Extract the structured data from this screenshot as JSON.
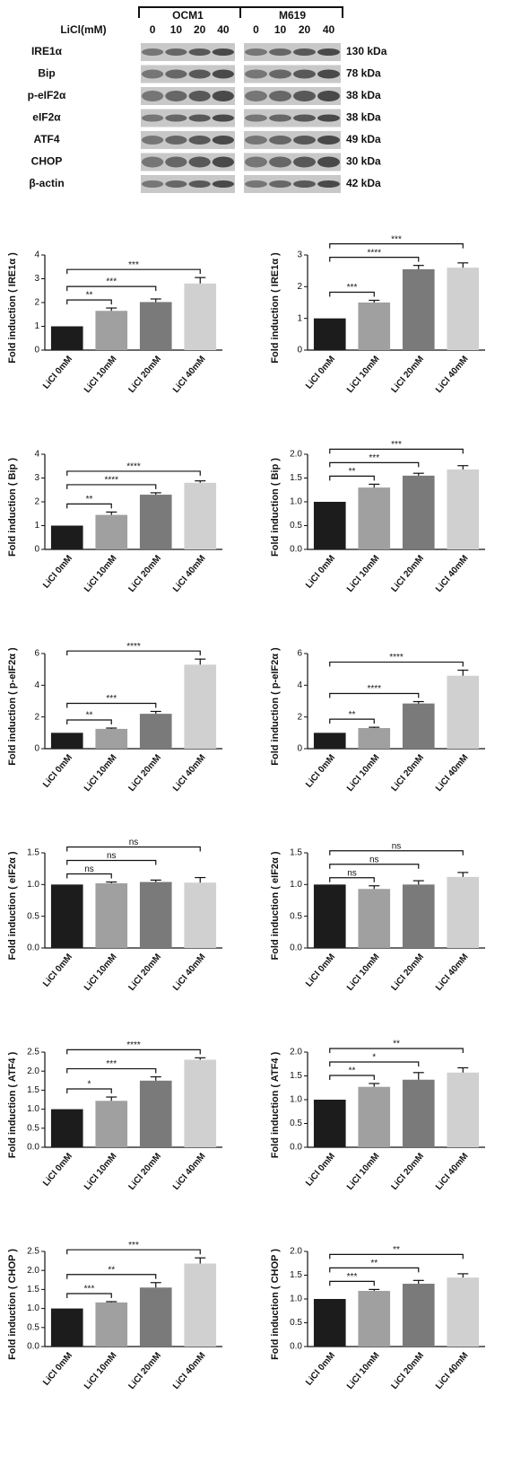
{
  "blot": {
    "dose_label": "LiCl(mM)",
    "cell_lines": [
      "OCM1",
      "M619"
    ],
    "doses": [
      "0",
      "10",
      "20",
      "40"
    ],
    "proteins": [
      {
        "name": "IRE1α",
        "size": "130 kDa"
      },
      {
        "name": "Bip",
        "size": "78 kDa"
      },
      {
        "name": "p-eIF2α",
        "size": "38 kDa"
      },
      {
        "name": "eIF2α",
        "size": "38 kDa"
      },
      {
        "name": "ATF4",
        "size": "49 kDa"
      },
      {
        "name": "CHOP",
        "size": "30 kDa"
      },
      {
        "name": "β-actin",
        "size": "42 kDa"
      }
    ]
  },
  "chart_data": [
    {
      "type": "bar",
      "y_label": "Fold induction ( IRE1α )",
      "categories": [
        "LiCl 0mM",
        "LiCl 10mM",
        "LiCl 20mM",
        "LiCl 40mM"
      ],
      "colors": [
        "#1c1c1c",
        "#a0a0a0",
        "#7a7a7a",
        "#d0d0d0"
      ],
      "values": [
        1.0,
        1.65,
        2.02,
        2.8
      ],
      "errors": [
        null,
        0.12,
        0.13,
        0.25
      ],
      "ylim": [
        0,
        4
      ],
      "yticks": [
        0,
        1,
        2,
        3,
        4
      ],
      "significance": [
        {
          "from": 0,
          "to": 1,
          "label": "**"
        },
        {
          "from": 0,
          "to": 2,
          "label": "***"
        },
        {
          "from": 0,
          "to": 3,
          "label": "***"
        }
      ]
    },
    {
      "type": "bar",
      "y_label": "Fold induction ( IRE1α )",
      "categories": [
        "LiCl 0mM",
        "LiCl 10mM",
        "LiCl 20mM",
        "LiCl 40mM"
      ],
      "colors": [
        "#1c1c1c",
        "#a0a0a0",
        "#7a7a7a",
        "#d0d0d0"
      ],
      "values": [
        1.0,
        1.5,
        2.55,
        2.6
      ],
      "errors": [
        null,
        0.07,
        0.12,
        0.15
      ],
      "ylim": [
        0,
        3
      ],
      "yticks": [
        0,
        1,
        2,
        3
      ],
      "significance": [
        {
          "from": 0,
          "to": 1,
          "label": "***"
        },
        {
          "from": 0,
          "to": 2,
          "label": "****"
        },
        {
          "from": 0,
          "to": 3,
          "label": "***"
        }
      ]
    },
    {
      "type": "bar",
      "y_label": "Fold induction ( Bip )",
      "categories": [
        "LiCl 0mM",
        "LiCl 10mM",
        "LiCl 20mM",
        "LiCl 40mM"
      ],
      "colors": [
        "#1c1c1c",
        "#a0a0a0",
        "#7a7a7a",
        "#d0d0d0"
      ],
      "values": [
        1.0,
        1.45,
        2.3,
        2.8
      ],
      "errors": [
        null,
        0.12,
        0.08,
        0.08
      ],
      "ylim": [
        0,
        4
      ],
      "yticks": [
        0,
        1,
        2,
        3,
        4
      ],
      "significance": [
        {
          "from": 0,
          "to": 1,
          "label": "**"
        },
        {
          "from": 0,
          "to": 2,
          "label": "****"
        },
        {
          "from": 0,
          "to": 3,
          "label": "****"
        }
      ]
    },
    {
      "type": "bar",
      "y_label": "Fold induction ( Bip )",
      "categories": [
        "LiCl 0mM",
        "LiCl 10mM",
        "LiCl 20mM",
        "LiCl 40mM"
      ],
      "colors": [
        "#1c1c1c",
        "#a0a0a0",
        "#7a7a7a",
        "#d0d0d0"
      ],
      "values": [
        1.0,
        1.3,
        1.55,
        1.68
      ],
      "errors": [
        null,
        0.07,
        0.05,
        0.08
      ],
      "ylim": [
        0,
        2
      ],
      "yticks": [
        {
          "value": 0,
          "label": "0.0"
        },
        {
          "value": 0.5,
          "label": "0.5"
        },
        {
          "value": 1,
          "label": "1.0"
        },
        {
          "value": 1.5,
          "label": "1.5"
        },
        {
          "value": 2,
          "label": "2.0"
        }
      ],
      "significance": [
        {
          "from": 0,
          "to": 1,
          "label": "**"
        },
        {
          "from": 0,
          "to": 2,
          "label": "***"
        },
        {
          "from": 0,
          "to": 3,
          "label": "***"
        }
      ]
    },
    {
      "type": "bar",
      "y_label": "Fold induction ( p-eIF2α )",
      "categories": [
        "LiCl 0mM",
        "LiCl 10mM",
        "LiCl 20mM",
        "LiCl 40mM"
      ],
      "colors": [
        "#1c1c1c",
        "#a0a0a0",
        "#7a7a7a",
        "#d0d0d0"
      ],
      "values": [
        1.0,
        1.25,
        2.2,
        5.3
      ],
      "errors": [
        null,
        0.05,
        0.15,
        0.35
      ],
      "ylim": [
        0,
        6
      ],
      "yticks": [
        0,
        2,
        4,
        6
      ],
      "significance": [
        {
          "from": 0,
          "to": 1,
          "label": "**"
        },
        {
          "from": 0,
          "to": 2,
          "label": "***"
        },
        {
          "from": 0,
          "to": 3,
          "label": "****"
        }
      ]
    },
    {
      "type": "bar",
      "y_label": "Fold induction ( p-eIF2α )",
      "categories": [
        "LiCl 0mM",
        "LiCl 10mM",
        "LiCl 20mM",
        "LiCl 40mM"
      ],
      "colors": [
        "#1c1c1c",
        "#a0a0a0",
        "#7a7a7a",
        "#d0d0d0"
      ],
      "values": [
        1.0,
        1.3,
        2.85,
        4.6
      ],
      "errors": [
        null,
        0.05,
        0.12,
        0.35
      ],
      "ylim": [
        0,
        6
      ],
      "yticks": [
        0,
        2,
        4,
        6
      ],
      "significance": [
        {
          "from": 0,
          "to": 1,
          "label": "**"
        },
        {
          "from": 0,
          "to": 2,
          "label": "****"
        },
        {
          "from": 0,
          "to": 3,
          "label": "****"
        }
      ]
    },
    {
      "type": "bar",
      "y_label": "Fold induction ( eIF2α )",
      "categories": [
        "LiCl 0mM",
        "LiCl 10mM",
        "LiCl 20mM",
        "LiCl 40mM"
      ],
      "colors": [
        "#1c1c1c",
        "#a0a0a0",
        "#7a7a7a",
        "#d0d0d0"
      ],
      "values": [
        1.0,
        1.02,
        1.04,
        1.03
      ],
      "errors": [
        null,
        0.02,
        0.03,
        0.08
      ],
      "ylim": [
        0,
        1.5
      ],
      "yticks": [
        {
          "value": 0,
          "label": "0.0"
        },
        0.5,
        {
          "value": 1,
          "label": "1.0"
        },
        1.5
      ],
      "significance": [
        {
          "from": 0,
          "to": 1,
          "label": "ns"
        },
        {
          "from": 0,
          "to": 2,
          "label": "ns"
        },
        {
          "from": 0,
          "to": 3,
          "label": "ns"
        }
      ]
    },
    {
      "type": "bar",
      "y_label": "Fold induction ( eIF2α )",
      "categories": [
        "LiCl 0mM",
        "LiCl 10mM",
        "LiCl 20mM",
        "LiCl 40mM"
      ],
      "colors": [
        "#1c1c1c",
        "#a0a0a0",
        "#7a7a7a",
        "#d0d0d0"
      ],
      "values": [
        1.0,
        0.93,
        1.0,
        1.12
      ],
      "errors": [
        null,
        0.05,
        0.06,
        0.07
      ],
      "ylim": [
        0,
        1.5
      ],
      "yticks": [
        {
          "value": 0,
          "label": "0.0"
        },
        0.5,
        {
          "value": 1,
          "label": "1.0"
        },
        1.5
      ],
      "significance": [
        {
          "from": 0,
          "to": 1,
          "label": "ns"
        },
        {
          "from": 0,
          "to": 2,
          "label": "ns"
        },
        {
          "from": 0,
          "to": 3,
          "label": "ns"
        }
      ]
    },
    {
      "type": "bar",
      "y_label": "Fold induction ( ATF4 )",
      "categories": [
        "LiCl 0mM",
        "LiCl 10mM",
        "LiCl 20mM",
        "LiCl 40mM"
      ],
      "colors": [
        "#1c1c1c",
        "#a0a0a0",
        "#7a7a7a",
        "#d0d0d0"
      ],
      "values": [
        1.0,
        1.22,
        1.75,
        2.3
      ],
      "errors": [
        null,
        0.1,
        0.1,
        0.05
      ],
      "ylim": [
        0,
        2.5
      ],
      "yticks": [
        {
          "value": 0,
          "label": "0.0"
        },
        0.5,
        {
          "value": 1,
          "label": "1.0"
        },
        1.5,
        {
          "value": 2,
          "label": "2.0"
        },
        2.5
      ],
      "significance": [
        {
          "from": 0,
          "to": 1,
          "label": "*"
        },
        {
          "from": 0,
          "to": 2,
          "label": "***"
        },
        {
          "from": 0,
          "to": 3,
          "label": "****"
        }
      ]
    },
    {
      "type": "bar",
      "y_label": "Fold induction ( ATF4 )",
      "categories": [
        "LiCl 0mM",
        "LiCl 10mM",
        "LiCl 20mM",
        "LiCl 40mM"
      ],
      "colors": [
        "#1c1c1c",
        "#a0a0a0",
        "#7a7a7a",
        "#d0d0d0"
      ],
      "values": [
        1.0,
        1.27,
        1.42,
        1.57
      ],
      "errors": [
        null,
        0.07,
        0.15,
        0.1
      ],
      "ylim": [
        0,
        2
      ],
      "yticks": [
        {
          "value": 0,
          "label": "0.0"
        },
        0.5,
        {
          "value": 1,
          "label": "1.0"
        },
        1.5,
        {
          "value": 2,
          "label": "2.0"
        }
      ],
      "significance": [
        {
          "from": 0,
          "to": 1,
          "label": "**"
        },
        {
          "from": 0,
          "to": 2,
          "label": "*"
        },
        {
          "from": 0,
          "to": 3,
          "label": "**"
        }
      ]
    },
    {
      "type": "bar",
      "y_label": "Fold induction ( CHOP )",
      "categories": [
        "LiCl 0mM",
        "LiCl 10mM",
        "LiCl 20mM",
        "LiCl 40mM"
      ],
      "colors": [
        "#1c1c1c",
        "#a0a0a0",
        "#7a7a7a",
        "#d0d0d0"
      ],
      "values": [
        1.0,
        1.16,
        1.55,
        2.18
      ],
      "errors": [
        null,
        0.02,
        0.13,
        0.15
      ],
      "ylim": [
        0,
        2.5
      ],
      "yticks": [
        {
          "value": 0,
          "label": "0.0"
        },
        0.5,
        {
          "value": 1,
          "label": "1.0"
        },
        1.5,
        {
          "value": 2,
          "label": "2.0"
        },
        2.5
      ],
      "significance": [
        {
          "from": 0,
          "to": 1,
          "label": "***"
        },
        {
          "from": 0,
          "to": 2,
          "label": "**"
        },
        {
          "from": 0,
          "to": 3,
          "label": "***"
        }
      ]
    },
    {
      "type": "bar",
      "y_label": "Fold induction ( CHOP )",
      "categories": [
        "LiCl 0mM",
        "LiCl 10mM",
        "LiCl 20mM",
        "LiCl 40mM"
      ],
      "colors": [
        "#1c1c1c",
        "#a0a0a0",
        "#7a7a7a",
        "#d0d0d0"
      ],
      "values": [
        1.0,
        1.17,
        1.32,
        1.45
      ],
      "errors": [
        null,
        0.03,
        0.07,
        0.08
      ],
      "ylim": [
        0,
        2
      ],
      "yticks": [
        {
          "value": 0,
          "label": "0.0"
        },
        0.5,
        {
          "value": 1,
          "label": "1.0"
        },
        1.5,
        {
          "value": 2,
          "label": "2.0"
        }
      ],
      "significance": [
        {
          "from": 0,
          "to": 1,
          "label": "***"
        },
        {
          "from": 0,
          "to": 2,
          "label": "**"
        },
        {
          "from": 0,
          "to": 3,
          "label": "**"
        }
      ]
    }
  ]
}
